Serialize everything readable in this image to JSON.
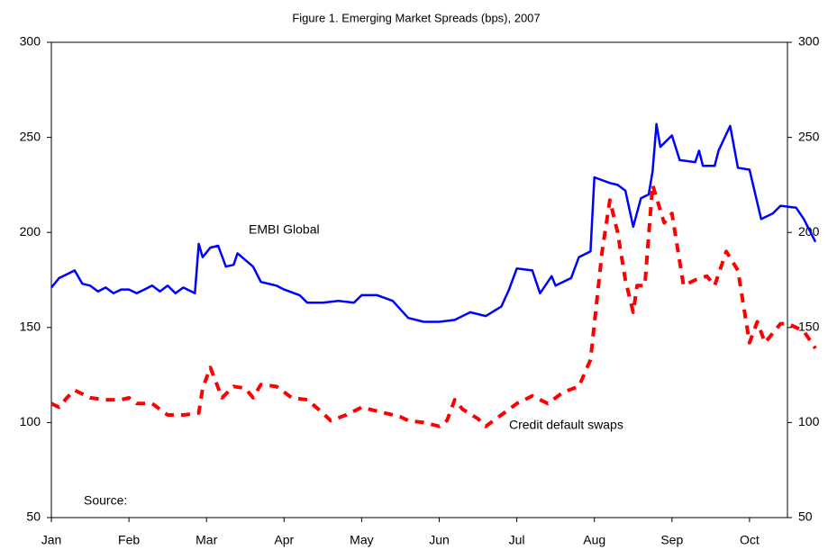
{
  "chart_data": {
    "type": "line",
    "title": "Figure 1. Emerging Market Spreads (bps), 2007",
    "annotations": [
      "EMBI Global",
      "Credit default swaps",
      "Source:"
    ],
    "xlim": [
      0,
      9.5
    ],
    "xticks": [
      {
        "value": 0,
        "label": "Jan"
      },
      {
        "value": 1,
        "label": "Feb"
      },
      {
        "value": 2,
        "label": "Mar"
      },
      {
        "value": 3,
        "label": "Apr"
      },
      {
        "value": 4,
        "label": "May"
      },
      {
        "value": 5,
        "label": "Jun"
      },
      {
        "value": 6,
        "label": "Jul"
      },
      {
        "value": 7,
        "label": "Aug"
      },
      {
        "value": 8,
        "label": "Sep"
      },
      {
        "value": 9,
        "label": "Oct"
      }
    ],
    "ylim": [
      50,
      300
    ],
    "yticks": [
      50,
      100,
      150,
      200,
      250,
      300
    ],
    "y2lim": [
      50,
      300
    ],
    "y2ticks": [
      50,
      100,
      150,
      200,
      250,
      300
    ],
    "series": [
      {
        "name": "EMBI Global",
        "color": "#0000ff",
        "dash": false,
        "x": [
          0,
          0.1,
          0.2,
          0.3,
          0.4,
          0.5,
          0.6,
          0.7,
          0.8,
          0.9,
          1.0,
          1.1,
          1.2,
          1.3,
          1.4,
          1.5,
          1.6,
          1.7,
          1.85,
          1.9,
          1.95,
          2.05,
          2.15,
          2.25,
          2.35,
          2.4,
          2.6,
          2.7,
          2.9,
          3.0,
          3.2,
          3.3,
          3.5,
          3.7,
          3.9,
          4.0,
          4.2,
          4.4,
          4.6,
          4.8,
          5.0,
          5.2,
          5.4,
          5.6,
          5.8,
          5.9,
          6.0,
          6.2,
          6.3,
          6.45,
          6.5,
          6.7,
          6.8,
          6.95,
          7.0,
          7.2,
          7.3,
          7.4,
          7.5,
          7.6,
          7.7,
          7.75,
          7.8,
          7.85,
          8.0,
          8.1,
          8.3,
          8.35,
          8.4,
          8.55,
          8.6,
          8.75,
          8.85,
          9.0,
          9.15,
          9.3,
          9.4,
          9.6,
          9.7,
          9.8,
          9.85
        ],
        "values": [
          171,
          176,
          178,
          180,
          173,
          172,
          169,
          171,
          168,
          170,
          170,
          168,
          170,
          172,
          169,
          172,
          168,
          171,
          168,
          194,
          187,
          192,
          193,
          182,
          183,
          189,
          182,
          174,
          172,
          170,
          167,
          163,
          163,
          164,
          163,
          167,
          167,
          164,
          155,
          153,
          153,
          154,
          158,
          156,
          161,
          170,
          181,
          180,
          168,
          177,
          172,
          176,
          187,
          190,
          229,
          226,
          225,
          222,
          203,
          218,
          220,
          232,
          257,
          245,
          251,
          238,
          237,
          243,
          235,
          235,
          243,
          256,
          234,
          233,
          207,
          210,
          214,
          213,
          207,
          199,
          195
        ]
      },
      {
        "name": "Credit default swaps",
        "color": "#ff0000",
        "dash": true,
        "x": [
          0,
          0.1,
          0.2,
          0.3,
          0.5,
          0.7,
          0.9,
          1.0,
          1.1,
          1.3,
          1.5,
          1.7,
          1.9,
          1.95,
          2.05,
          2.2,
          2.35,
          2.5,
          2.6,
          2.7,
          2.9,
          3.1,
          3.3,
          3.5,
          3.6,
          3.8,
          4.0,
          4.2,
          4.5,
          4.6,
          4.8,
          5.0,
          5.1,
          5.2,
          5.3,
          5.5,
          5.6,
          5.8,
          6.0,
          6.2,
          6.4,
          6.6,
          6.8,
          6.95,
          7.1,
          7.2,
          7.3,
          7.4,
          7.5,
          7.55,
          7.65,
          7.75,
          7.9,
          8.0,
          8.15,
          8.3,
          8.45,
          8.55,
          8.7,
          8.85,
          9.0,
          9.1,
          9.2,
          9.4,
          9.5,
          9.7,
          9.85
        ],
        "values": [
          110,
          108,
          113,
          117,
          113,
          112,
          112,
          113,
          110,
          110,
          104,
          104,
          105,
          118,
          129,
          113,
          119,
          118,
          113,
          120,
          119,
          113,
          112,
          105,
          101,
          104,
          108,
          106,
          103,
          101,
          100,
          98,
          101,
          112,
          107,
          102,
          98,
          104,
          110,
          114,
          110,
          116,
          119,
          133,
          190,
          217,
          200,
          175,
          158,
          172,
          172,
          225,
          205,
          210,
          172,
          175,
          177,
          172,
          190,
          180,
          142,
          153,
          142,
          152,
          152,
          148,
          139
        ]
      }
    ]
  }
}
